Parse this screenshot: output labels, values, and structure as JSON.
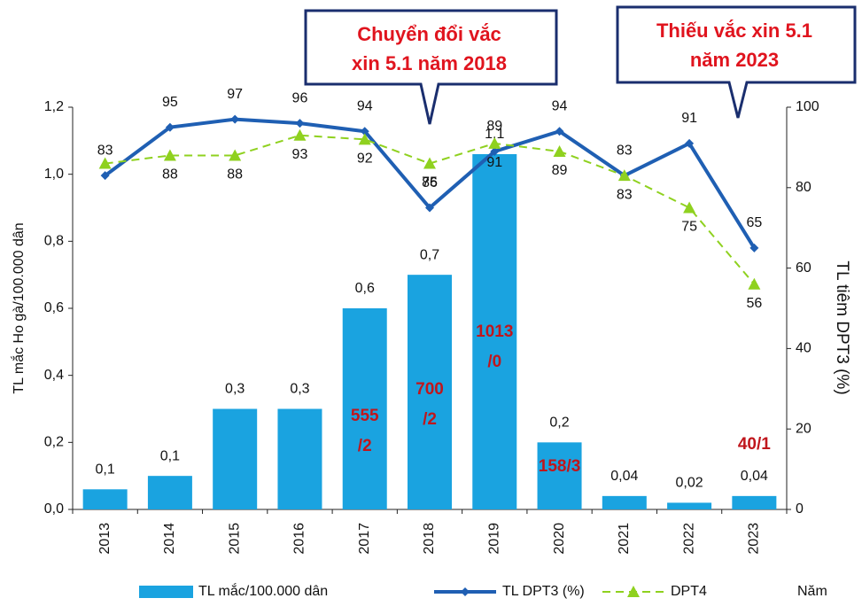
{
  "chart_data": {
    "type": "bar",
    "categories": [
      "2013",
      "2014",
      "2015",
      "2016",
      "2017",
      "2018",
      "2019",
      "2020",
      "2021",
      "2022",
      "2023"
    ],
    "values": [
      0.06,
      0.1,
      0.3,
      0.3,
      0.6,
      0.7,
      1.06,
      0.2,
      0.04,
      0.02,
      0.04
    ],
    "value_labels": [
      "0,1",
      "0,1",
      "0,3",
      "0,3",
      "0,6",
      "0,7",
      "1,1",
      "0,2",
      "0,04",
      "0,02",
      "0,04"
    ],
    "name": "TL mắc/100.000 dân",
    "color": "#1aa3e0",
    "bar_annotations": [
      null,
      null,
      null,
      null,
      [
        "555",
        "/2"
      ],
      [
        "700",
        "/2"
      ],
      [
        "1013",
        "/0"
      ],
      [
        "158/3"
      ],
      null,
      null,
      [
        "40/1"
      ]
    ],
    "annotation_color": "#c0161c",
    "series": [
      {
        "name": "TL DPT3 (%)",
        "color": "#1f5fb3",
        "axis": "y2",
        "values": [
          83,
          95,
          97,
          96,
          94,
          75,
          89,
          94,
          83,
          91,
          65
        ]
      },
      {
        "name": "DPT4",
        "color": "#8fd11f",
        "axis": "y2",
        "dashed": true,
        "values": [
          86,
          88,
          88,
          93,
          92,
          86,
          91,
          89,
          83,
          75,
          56
        ],
        "value_labels": [
          null,
          "88",
          "88",
          "93",
          "92",
          "86",
          "91",
          "89",
          "83",
          "75",
          "56"
        ]
      }
    ],
    "ylabel": "TL mắc Ho gà/100.000 dân",
    "y2label": "TL tiêm DPT3 (%)",
    "xlabel": "Năm",
    "ylim": [
      0,
      1.2
    ],
    "yticks": [
      {
        "value": 0,
        "label": "0,0"
      },
      {
        "value": 0.2,
        "label": "0,2"
      },
      {
        "value": 0.4,
        "label": "0,4"
      },
      {
        "value": 0.6,
        "label": "0,6"
      },
      {
        "value": 0.8,
        "label": "0,8"
      },
      {
        "value": 1.0,
        "label": "1,0"
      },
      {
        "value": 1.2,
        "label": "1,2"
      }
    ],
    "y2lim": [
      0,
      100
    ],
    "y2ticks": [
      0,
      20,
      40,
      60,
      80,
      100
    ],
    "callouts": [
      {
        "lines": [
          "Chuyển đổi vắc",
          "xin 5.1 năm 2018"
        ]
      },
      {
        "lines": [
          "Thiếu vắc xin 5.1",
          "năm 2023"
        ]
      }
    ]
  }
}
